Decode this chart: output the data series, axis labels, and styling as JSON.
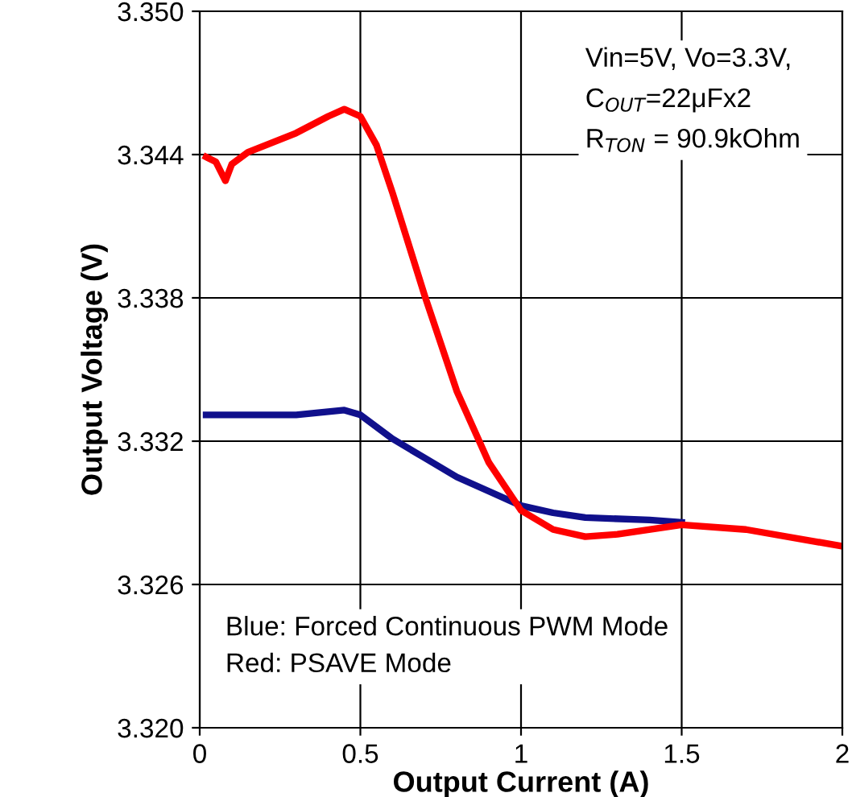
{
  "chart_data": {
    "type": "line",
    "xlabel": "Output Current (A)",
    "ylabel": "Output Voltage (V)",
    "xlim": [
      0,
      2
    ],
    "xticks": [
      0,
      0.5,
      1,
      1.5,
      2
    ],
    "ylim": [
      3.32,
      3.35
    ],
    "yticks": [
      {
        "value": 3.32,
        "label": "3.320"
      },
      {
        "value": 3.326,
        "label": "3.326"
      },
      {
        "value": 3.332,
        "label": "3.332"
      },
      {
        "value": 3.338,
        "label": "3.338"
      },
      {
        "value": 3.344,
        "label": "3.344"
      },
      {
        "value": 3.35,
        "label": "3.350"
      }
    ],
    "grid": true,
    "line_style": "solid",
    "series": [
      {
        "color": "#10108c",
        "x": [
          0.02,
          0.1,
          0.2,
          0.3,
          0.45,
          0.5,
          0.6,
          0.7,
          0.8,
          0.9,
          1.0,
          1.1,
          1.2,
          1.4,
          1.5
        ],
        "values": [
          3.3331,
          3.3331,
          3.3331,
          3.3331,
          3.3333,
          3.3331,
          3.3321,
          3.3313,
          3.3305,
          3.3299,
          3.3293,
          3.329,
          3.3288,
          3.3287,
          3.3286
        ]
      },
      {
        "color": "#ff0000",
        "x": [
          0.02,
          0.05,
          0.08,
          0.1,
          0.15,
          0.3,
          0.4,
          0.45,
          0.5,
          0.55,
          0.6,
          0.7,
          0.8,
          0.9,
          1.0,
          1.1,
          1.2,
          1.3,
          1.5,
          1.7,
          2.0
        ],
        "values": [
          3.3439,
          3.3437,
          3.3429,
          3.3436,
          3.3441,
          3.3449,
          3.3456,
          3.3459,
          3.3456,
          3.3444,
          3.3424,
          3.3381,
          3.3341,
          3.3311,
          3.3291,
          3.3283,
          3.328,
          3.3281,
          3.3285,
          3.3283,
          3.3276
        ]
      }
    ],
    "annotations": [
      "Vin=5V, Vo=3.3V,",
      "C$_{OUT}$=22μFx2",
      "R$_{TON}$ = 90.9kOhm",
      "Blue: Forced Continuous PWM Mode",
      "Red: PSAVE Mode"
    ]
  }
}
